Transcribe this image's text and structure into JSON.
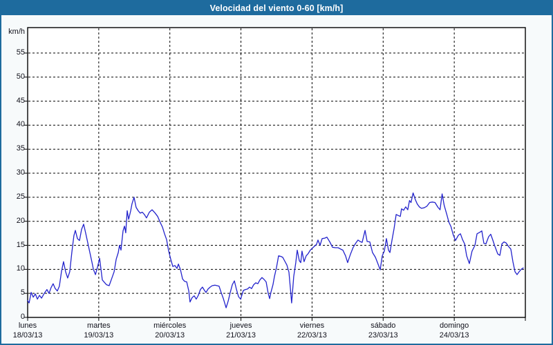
{
  "window": {
    "title": "Velocidad del viento 0-60 [km/h]"
  },
  "colors": {
    "titlebar": "#1e6b9e",
    "window_border": "#1e6b9e",
    "background": "#f7fafb",
    "plot_background": "#ffffff",
    "grid": "#000000",
    "line": "#2222cc",
    "text": "#10101a",
    "title_text": "#ffffff"
  },
  "chart_data": {
    "type": "line",
    "title": "Velocidad del viento 0-60 [km/h]",
    "ylabel": "km/h",
    "ylim": [
      0,
      60.3
    ],
    "xlim_hours": [
      0,
      168
    ],
    "yticks": [
      0,
      5,
      10,
      15,
      20,
      25,
      30,
      35,
      40,
      45,
      50,
      55
    ],
    "grid": "dashed",
    "legend": "none",
    "days": [
      {
        "name": "lunes",
        "date": "18/03/13"
      },
      {
        "name": "martes",
        "date": "19/03/13"
      },
      {
        "name": "miércoles",
        "date": "20/03/13"
      },
      {
        "name": "jueves",
        "date": "21/03/13"
      },
      {
        "name": "viernes",
        "date": "22/03/13"
      },
      {
        "name": "sábado",
        "date": "23/03/13"
      },
      {
        "name": "domingo",
        "date": "24/03/13"
      }
    ],
    "series": [
      {
        "name": "Velocidad del viento (km/h)",
        "x_unit": "hours since 18/03/13 00:00",
        "points": [
          [
            0,
            3.5
          ],
          [
            0.5,
            3.0
          ],
          [
            1.2,
            5.2
          ],
          [
            1.9,
            4.2
          ],
          [
            2.6,
            4.9
          ],
          [
            3.3,
            3.8
          ],
          [
            4.0,
            4.6
          ],
          [
            4.7,
            4.0
          ],
          [
            5.6,
            5.0
          ],
          [
            6.5,
            5.8
          ],
          [
            7.2,
            5.0
          ],
          [
            7.9,
            6.2
          ],
          [
            8.6,
            7.0
          ],
          [
            9.3,
            6.0
          ],
          [
            10.0,
            5.5
          ],
          [
            10.7,
            6.5
          ],
          [
            11.4,
            9.5
          ],
          [
            12.1,
            11.6
          ],
          [
            12.8,
            9.5
          ],
          [
            13.5,
            8.2
          ],
          [
            14.2,
            9.5
          ],
          [
            14.9,
            13.5
          ],
          [
            15.6,
            17.0
          ],
          [
            16.1,
            18.1
          ],
          [
            16.8,
            16.4
          ],
          [
            17.5,
            16.0
          ],
          [
            18.2,
            18.3
          ],
          [
            18.9,
            19.4
          ],
          [
            19.6,
            17.5
          ],
          [
            20.3,
            15.5
          ],
          [
            21.0,
            13.5
          ],
          [
            21.7,
            11.5
          ],
          [
            22.2,
            10.0
          ],
          [
            22.9,
            8.9
          ],
          [
            23.6,
            10.5
          ],
          [
            24.3,
            12.3
          ],
          [
            25.2,
            7.8
          ],
          [
            25.9,
            7.3
          ],
          [
            26.6,
            6.8
          ],
          [
            27.5,
            6.6
          ],
          [
            28.2,
            7.8
          ],
          [
            29.2,
            9.5
          ],
          [
            29.9,
            12.1
          ],
          [
            30.6,
            13.5
          ],
          [
            31.0,
            15.0
          ],
          [
            31.5,
            14.0
          ],
          [
            32.2,
            18.0
          ],
          [
            32.7,
            19.0
          ],
          [
            33.1,
            17.6
          ],
          [
            33.6,
            22.2
          ],
          [
            34.1,
            20.4
          ],
          [
            34.8,
            22.2
          ],
          [
            35.2,
            23.6
          ],
          [
            35.9,
            25.0
          ],
          [
            36.6,
            22.9
          ],
          [
            37.3,
            22.2
          ],
          [
            38.0,
            21.7
          ],
          [
            38.7,
            21.9
          ],
          [
            39.4,
            21.4
          ],
          [
            40.1,
            20.7
          ],
          [
            41.1,
            21.9
          ],
          [
            42.0,
            22.4
          ],
          [
            42.9,
            21.8
          ],
          [
            43.9,
            21.0
          ],
          [
            44.8,
            19.7
          ],
          [
            45.5,
            18.8
          ],
          [
            46.2,
            17.4
          ],
          [
            46.9,
            16.2
          ],
          [
            47.6,
            13.8
          ],
          [
            48.3,
            12.1
          ],
          [
            49.0,
            10.6
          ],
          [
            49.7,
            10.8
          ],
          [
            50.4,
            10.2
          ],
          [
            50.9,
            11.1
          ],
          [
            51.6,
            9.9
          ],
          [
            52.3,
            8.0
          ],
          [
            53.0,
            7.5
          ],
          [
            53.7,
            7.4
          ],
          [
            54.4,
            5.5
          ],
          [
            54.8,
            3.2
          ],
          [
            55.5,
            4.1
          ],
          [
            56.2,
            4.5
          ],
          [
            56.9,
            3.8
          ],
          [
            57.6,
            4.6
          ],
          [
            58.3,
            5.8
          ],
          [
            59.0,
            6.3
          ],
          [
            59.7,
            5.6
          ],
          [
            60.2,
            5.2
          ],
          [
            60.9,
            5.9
          ],
          [
            61.6,
            6.3
          ],
          [
            62.3,
            6.6
          ],
          [
            63.2,
            6.7
          ],
          [
            63.9,
            6.6
          ],
          [
            64.6,
            6.5
          ],
          [
            65.3,
            5.2
          ],
          [
            66.0,
            4.0
          ],
          [
            67.0,
            2.0
          ],
          [
            67.7,
            3.4
          ],
          [
            68.4,
            5.2
          ],
          [
            69.1,
            6.8
          ],
          [
            69.8,
            7.6
          ],
          [
            70.5,
            5.8
          ],
          [
            71.2,
            4.3
          ],
          [
            71.9,
            3.8
          ],
          [
            72.8,
            5.6
          ],
          [
            73.5,
            5.8
          ],
          [
            74.2,
            5.9
          ],
          [
            74.9,
            6.3
          ],
          [
            75.6,
            6.0
          ],
          [
            76.3,
            6.8
          ],
          [
            77.0,
            7.2
          ],
          [
            77.7,
            7.0
          ],
          [
            78.4,
            7.8
          ],
          [
            79.1,
            8.3
          ],
          [
            79.8,
            7.9
          ],
          [
            80.5,
            7.4
          ],
          [
            81.2,
            5.0
          ],
          [
            81.7,
            3.9
          ],
          [
            82.1,
            5.2
          ],
          [
            82.8,
            6.8
          ],
          [
            83.3,
            8.5
          ],
          [
            84.0,
            10.4
          ],
          [
            84.7,
            12.8
          ],
          [
            85.4,
            12.7
          ],
          [
            86.1,
            12.5
          ],
          [
            86.8,
            11.7
          ],
          [
            87.5,
            10.9
          ],
          [
            88.2,
            9.4
          ],
          [
            88.7,
            6.0
          ],
          [
            89.1,
            3.0
          ],
          [
            89.8,
            8.5
          ],
          [
            90.5,
            11.4
          ],
          [
            91.0,
            14.0
          ],
          [
            91.7,
            11.8
          ],
          [
            92.2,
            11.4
          ],
          [
            92.6,
            13.8
          ],
          [
            93.3,
            11.6
          ],
          [
            94.0,
            12.8
          ],
          [
            94.7,
            13.3
          ],
          [
            95.4,
            14.0
          ],
          [
            96.1,
            14.4
          ],
          [
            96.8,
            14.8
          ],
          [
            97.5,
            15.2
          ],
          [
            98.0,
            16.1
          ],
          [
            98.7,
            15.0
          ],
          [
            99.4,
            16.4
          ],
          [
            100.3,
            16.5
          ],
          [
            101.0,
            16.7
          ],
          [
            102.0,
            15.7
          ],
          [
            102.9,
            14.6
          ],
          [
            103.8,
            14.5
          ],
          [
            104.8,
            14.5
          ],
          [
            105.7,
            14.2
          ],
          [
            106.4,
            14.0
          ],
          [
            107.3,
            12.8
          ],
          [
            108.0,
            11.4
          ],
          [
            109.0,
            13.2
          ],
          [
            109.9,
            14.6
          ],
          [
            110.8,
            15.5
          ],
          [
            111.5,
            16.1
          ],
          [
            112.2,
            15.8
          ],
          [
            112.9,
            15.6
          ],
          [
            113.9,
            18.1
          ],
          [
            114.6,
            15.8
          ],
          [
            115.5,
            15.7
          ],
          [
            116.4,
            13.5
          ],
          [
            117.4,
            12.5
          ],
          [
            118.1,
            11.4
          ],
          [
            119.0,
            9.9
          ],
          [
            119.7,
            12.8
          ],
          [
            120.4,
            13.8
          ],
          [
            121.1,
            16.4
          ],
          [
            121.8,
            14.0
          ],
          [
            122.3,
            13.5
          ],
          [
            123.0,
            16.1
          ],
          [
            123.7,
            18.5
          ],
          [
            124.4,
            21.4
          ],
          [
            125.1,
            21.2
          ],
          [
            125.8,
            21.0
          ],
          [
            126.2,
            22.6
          ],
          [
            126.9,
            22.3
          ],
          [
            127.6,
            23.0
          ],
          [
            128.3,
            22.4
          ],
          [
            128.9,
            24.3
          ],
          [
            129.4,
            23.9
          ],
          [
            130.1,
            25.9
          ],
          [
            130.8,
            24.6
          ],
          [
            131.5,
            23.6
          ],
          [
            132.2,
            23.0
          ],
          [
            132.9,
            22.7
          ],
          [
            133.8,
            22.8
          ],
          [
            134.7,
            23.1
          ],
          [
            135.7,
            23.9
          ],
          [
            136.6,
            24.0
          ],
          [
            137.5,
            23.9
          ],
          [
            138.5,
            22.9
          ],
          [
            139.2,
            22.4
          ],
          [
            139.9,
            25.7
          ],
          [
            140.6,
            23.3
          ],
          [
            141.5,
            21.4
          ],
          [
            142.2,
            19.8
          ],
          [
            142.9,
            18.9
          ],
          [
            143.6,
            17.3
          ],
          [
            144.4,
            16.0
          ],
          [
            145.4,
            17.1
          ],
          [
            146.1,
            17.4
          ],
          [
            146.8,
            16.2
          ],
          [
            147.5,
            15.3
          ],
          [
            148.2,
            12.8
          ],
          [
            149.1,
            11.2
          ],
          [
            150.0,
            13.8
          ],
          [
            151.0,
            15.0
          ],
          [
            151.7,
            17.4
          ],
          [
            152.6,
            17.7
          ],
          [
            153.3,
            18.0
          ],
          [
            154.0,
            15.4
          ],
          [
            154.7,
            15.3
          ],
          [
            155.6,
            16.8
          ],
          [
            156.3,
            17.3
          ],
          [
            157.0,
            16.1
          ],
          [
            157.7,
            14.8
          ],
          [
            158.7,
            13.2
          ],
          [
            159.4,
            12.9
          ],
          [
            160.1,
            15.3
          ],
          [
            160.8,
            15.7
          ],
          [
            161.5,
            15.5
          ],
          [
            162.4,
            14.7
          ],
          [
            163.1,
            14.2
          ],
          [
            163.8,
            11.6
          ],
          [
            164.5,
            9.5
          ],
          [
            165.2,
            8.9
          ],
          [
            165.9,
            9.5
          ],
          [
            166.6,
            10.0
          ],
          [
            167.3,
            10.3
          ]
        ]
      }
    ]
  }
}
